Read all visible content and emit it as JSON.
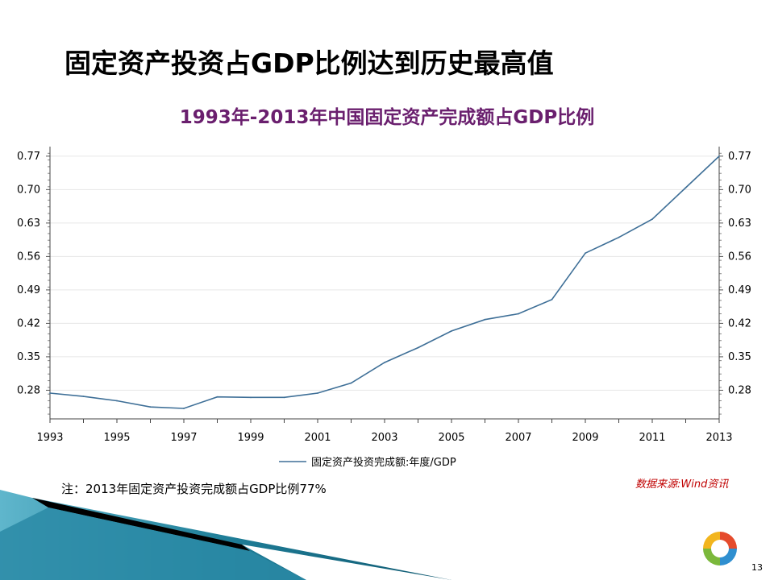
{
  "slide": {
    "title": "固定资产投资占GDP比例达到历史最高值",
    "note": "注：2013年固定资产投资完成额占GDP比例77%",
    "source": "数据来源:Wind资讯",
    "page_number": "13"
  },
  "colors": {
    "title_purple": "#6a1f6e",
    "line": "#3e6f97",
    "source_red": "#c00000"
  },
  "chart_data": {
    "type": "line",
    "title": "1993年-2013年中国固定资产完成额占GDP比例",
    "x": [
      1993,
      1994,
      1995,
      1996,
      1997,
      1998,
      1999,
      2000,
      2001,
      2002,
      2003,
      2004,
      2005,
      2006,
      2007,
      2008,
      2009,
      2010,
      2011,
      2012,
      2013
    ],
    "series": [
      {
        "name": "固定资产投资完成额:年度/GDP",
        "values": [
          0.274,
          0.267,
          0.258,
          0.245,
          0.242,
          0.266,
          0.265,
          0.265,
          0.274,
          0.295,
          0.338,
          0.369,
          0.404,
          0.428,
          0.44,
          0.47,
          0.567,
          0.6,
          0.638,
          0.704,
          0.77
        ]
      }
    ],
    "yticks": [
      "0.77",
      "0.70",
      "0.63",
      "0.56",
      "0.49",
      "0.42",
      "0.35",
      "0.28"
    ],
    "xticks": [
      "1993",
      "1995",
      "1997",
      "1999",
      "2001",
      "2003",
      "2005",
      "2007",
      "2009",
      "2011",
      "2013"
    ],
    "ylim": [
      0.22,
      0.79
    ],
    "xlim": [
      1993,
      2013
    ],
    "grid": true,
    "legend": "bottom-center",
    "dual_y_axis": true
  }
}
